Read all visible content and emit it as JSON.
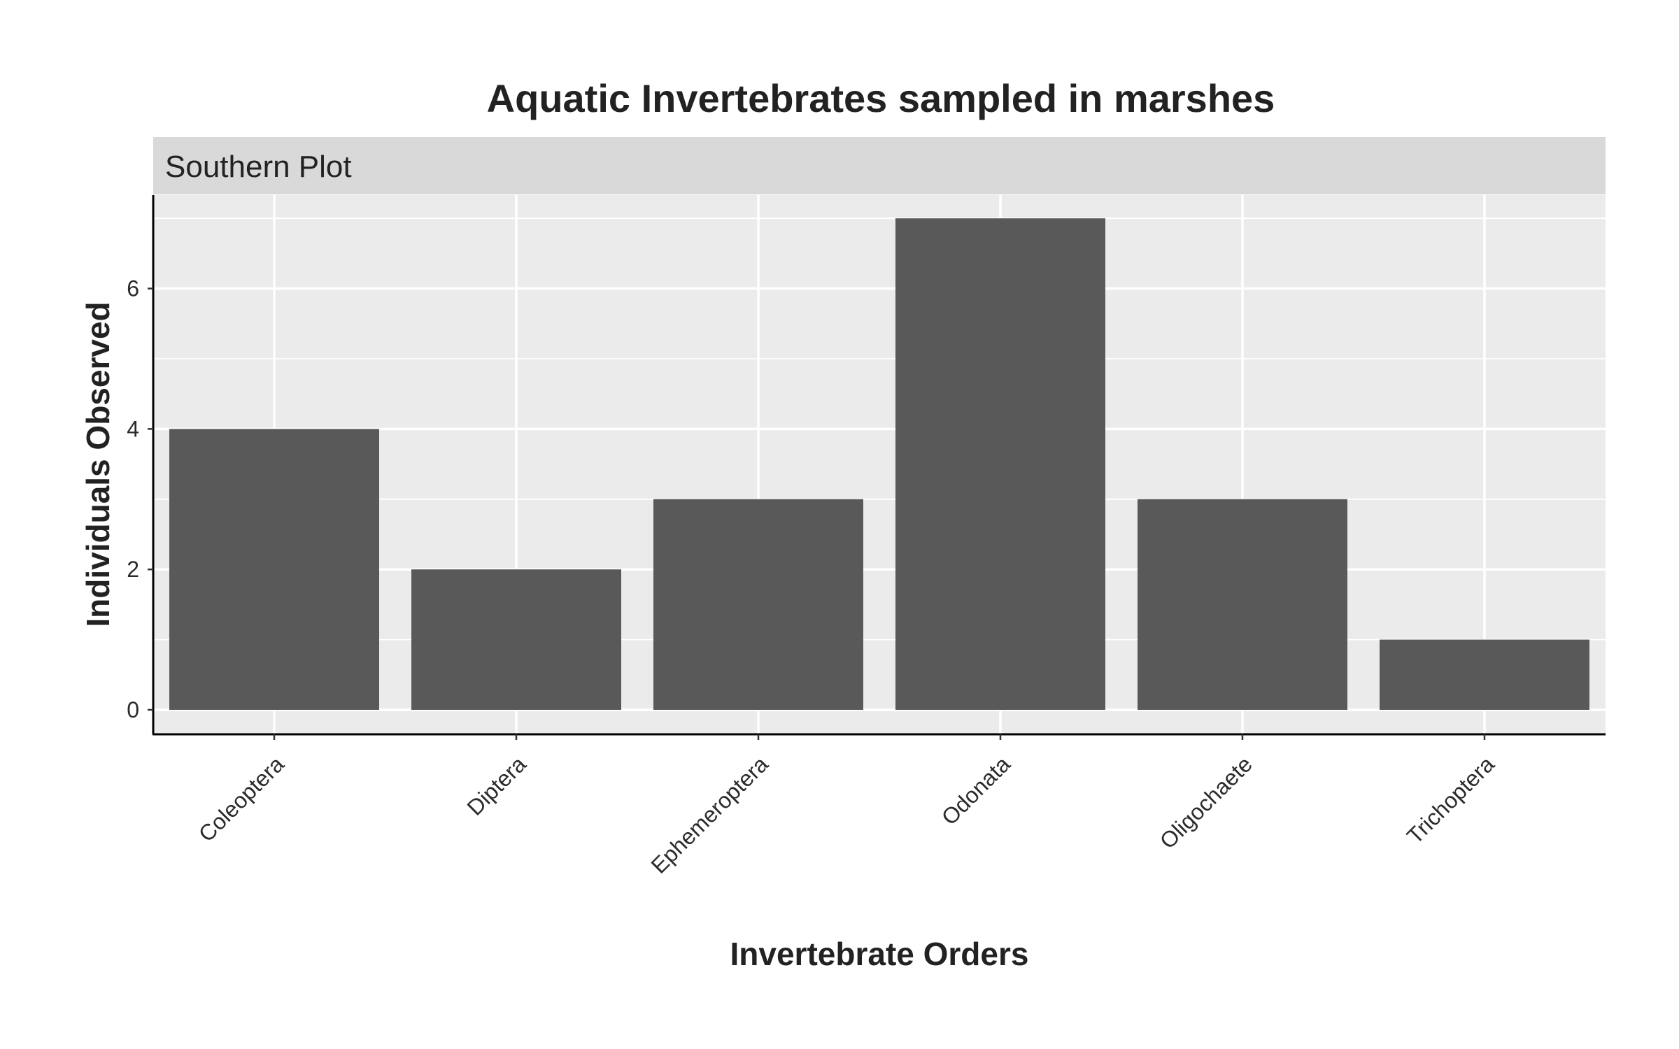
{
  "chart_data": {
    "type": "bar",
    "title": "Aquatic Invertebrates sampled in marshes",
    "facet_label": "Southern Plot",
    "xlabel": "Invertebrate Orders",
    "ylabel": "Individuals Observed",
    "categories": [
      "Coleoptera",
      "Diptera",
      "Ephemeroptera",
      "Odonata",
      "Oligochaete",
      "Trichoptera"
    ],
    "values": [
      4,
      2,
      3,
      7,
      3,
      1
    ],
    "ylim": [
      0,
      7
    ],
    "yticks": [
      0,
      2,
      4,
      6
    ],
    "grid": true,
    "colors": {
      "bar": "#595959",
      "panel": "#ebebeb",
      "strip": "#d9d9d9",
      "grid": "#ffffff",
      "axis": "#000000",
      "text": "#222222"
    }
  }
}
